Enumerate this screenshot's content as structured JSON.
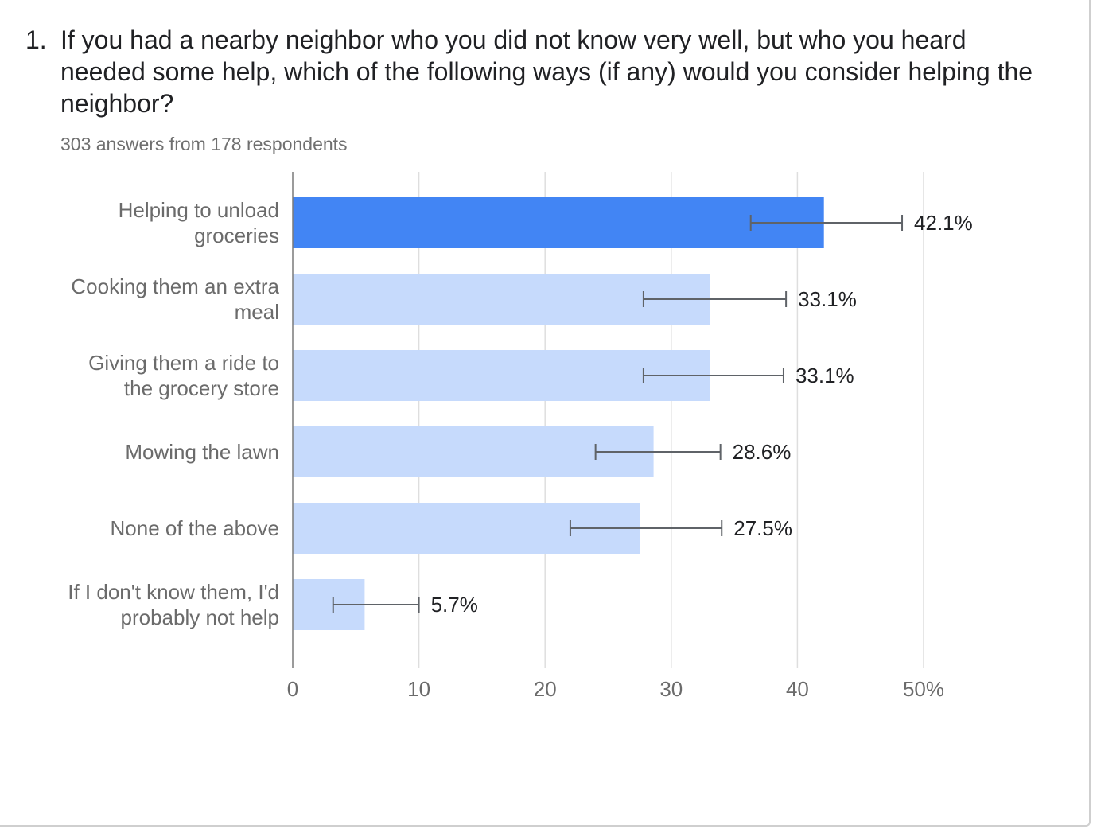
{
  "question": {
    "number": "1.",
    "text": "If you had a nearby neighbor who you did not know very well, but who you heard needed some help, which of the following ways (if any) would you consider helping the neighbor?",
    "answers_summary": "303 answers from 178 respondents"
  },
  "chart_data": {
    "type": "bar",
    "orientation": "horizontal",
    "title": "",
    "xlabel": "",
    "ylabel": "",
    "xlim": [
      0,
      50
    ],
    "ticks": [
      {
        "value": 0,
        "label": "0"
      },
      {
        "value": 10,
        "label": "10"
      },
      {
        "value": 20,
        "label": "20"
      },
      {
        "value": 30,
        "label": "30"
      },
      {
        "value": 40,
        "label": "40"
      },
      {
        "value": 50,
        "label": "50%"
      }
    ],
    "grid": true,
    "legend": "none",
    "highlight_color": "#4285f4",
    "bar_color": "#c6dafc",
    "errorbar_color": "#5f6368",
    "categories": [
      {
        "label_lines": [
          "Helping to unload",
          "groceries"
        ],
        "value": 42.1,
        "label": "42.1%",
        "err_low": 36.3,
        "err_high": 48.3,
        "highlight": true
      },
      {
        "label_lines": [
          "Cooking them an extra",
          "meal"
        ],
        "value": 33.1,
        "label": "33.1%",
        "err_low": 27.8,
        "err_high": 39.1,
        "highlight": false
      },
      {
        "label_lines": [
          "Giving them a ride to",
          "the grocery store"
        ],
        "value": 33.1,
        "label": "33.1%",
        "err_low": 27.8,
        "err_high": 38.9,
        "highlight": false
      },
      {
        "label_lines": [
          "Mowing the lawn"
        ],
        "value": 28.6,
        "label": "28.6%",
        "err_low": 24.0,
        "err_high": 33.9,
        "highlight": false
      },
      {
        "label_lines": [
          "None of the above"
        ],
        "value": 27.5,
        "label": "27.5%",
        "err_low": 22.0,
        "err_high": 34.0,
        "highlight": false
      },
      {
        "label_lines": [
          "If I don't know them, I'd",
          "probably not help"
        ],
        "value": 5.7,
        "label": "5.7%",
        "err_low": 3.2,
        "err_high": 10.0,
        "highlight": false
      }
    ]
  }
}
